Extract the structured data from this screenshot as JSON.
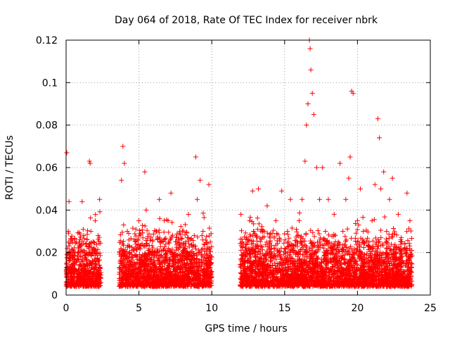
{
  "chart_data": {
    "type": "scatter",
    "title": "Day 064 of 2018, Rate Of TEC Index for receiver nbrk",
    "xlabel": "GPS time / hours",
    "ylabel": "ROTI / TECUs",
    "xlim": [
      0,
      25
    ],
    "ylim": [
      0,
      0.12
    ],
    "x_ticks": [
      0,
      5,
      10,
      15,
      20,
      25
    ],
    "x_tick_labels": [
      "0",
      "5",
      "10",
      "15",
      "20",
      "25"
    ],
    "y_ticks": [
      0,
      0.02,
      0.04,
      0.06,
      0.08,
      0.1,
      0.12
    ],
    "y_tick_labels": [
      "0",
      "0.02",
      "0.04",
      "0.06",
      "0.08",
      "0.1",
      "0.12"
    ],
    "grid": true,
    "marker": "+",
    "color": "#ff0000",
    "series": [
      {
        "name": "ROTI",
        "x": [
          0.05,
          0.1,
          0.15,
          0.2,
          0.3,
          0.35,
          0.5,
          0.7,
          0.9,
          1.0,
          1.1,
          1.2,
          1.3,
          1.4,
          1.5,
          1.6,
          1.65,
          1.7,
          1.8,
          1.9,
          2.0,
          2.1,
          2.2,
          2.3,
          3.7,
          3.8,
          3.9,
          4.0,
          4.2,
          4.5,
          4.8,
          5.0,
          5.2,
          5.4,
          5.5,
          5.7,
          6.0,
          6.2,
          6.4,
          6.6,
          6.8,
          7.0,
          7.2,
          7.4,
          7.5,
          7.8,
          8.0,
          8.2,
          8.4,
          8.6,
          8.8,
          8.9,
          9.0,
          9.1,
          9.2,
          9.4,
          9.6,
          9.8,
          9.9,
          12.0,
          12.1,
          12.3,
          12.6,
          12.8,
          13.0,
          13.2,
          13.4,
          13.6,
          13.8,
          14.0,
          14.2,
          14.4,
          14.6,
          14.8,
          15.0,
          15.2,
          15.4,
          15.6,
          15.8,
          16.0,
          16.2,
          16.4,
          16.5,
          16.6,
          16.7,
          16.75,
          16.8,
          16.9,
          17.0,
          17.2,
          17.4,
          17.6,
          17.8,
          18.0,
          18.2,
          18.4,
          18.6,
          18.8,
          19.0,
          19.2,
          19.4,
          19.5,
          19.6,
          19.7,
          19.8,
          20.0,
          20.2,
          20.4,
          20.6,
          20.8,
          21.0,
          21.2,
          21.4,
          21.5,
          21.6,
          21.8,
          22.0,
          22.2,
          22.4,
          22.6,
          22.8,
          23.0,
          23.2,
          23.4,
          23.6
        ],
        "y": [
          0.067,
          0.012,
          0.03,
          0.044,
          0.02,
          0.008,
          0.015,
          0.025,
          0.01,
          0.018,
          0.044,
          0.028,
          0.012,
          0.02,
          0.009,
          0.063,
          0.062,
          0.03,
          0.015,
          0.022,
          0.035,
          0.01,
          0.028,
          0.045,
          0.02,
          0.054,
          0.07,
          0.062,
          0.03,
          0.012,
          0.025,
          0.035,
          0.018,
          0.058,
          0.04,
          0.02,
          0.01,
          0.03,
          0.045,
          0.025,
          0.015,
          0.035,
          0.048,
          0.02,
          0.01,
          0.03,
          0.012,
          0.025,
          0.038,
          0.018,
          0.028,
          0.065,
          0.045,
          0.02,
          0.054,
          0.03,
          0.012,
          0.052,
          0.025,
          0.038,
          0.025,
          0.012,
          0.035,
          0.049,
          0.02,
          0.05,
          0.015,
          0.03,
          0.042,
          0.025,
          0.01,
          0.035,
          0.02,
          0.049,
          0.015,
          0.03,
          0.045,
          0.02,
          0.01,
          0.035,
          0.045,
          0.063,
          0.08,
          0.09,
          0.12,
          0.116,
          0.106,
          0.095,
          0.085,
          0.06,
          0.045,
          0.06,
          0.03,
          0.045,
          0.02,
          0.038,
          0.015,
          0.062,
          0.03,
          0.045,
          0.055,
          0.065,
          0.096,
          0.095,
          0.02,
          0.035,
          0.05,
          0.03,
          0.015,
          0.025,
          0.035,
          0.052,
          0.083,
          0.074,
          0.05,
          0.058,
          0.03,
          0.045,
          0.055,
          0.02,
          0.038,
          0.025,
          0.015,
          0.048,
          0.035
        ]
      }
    ]
  }
}
